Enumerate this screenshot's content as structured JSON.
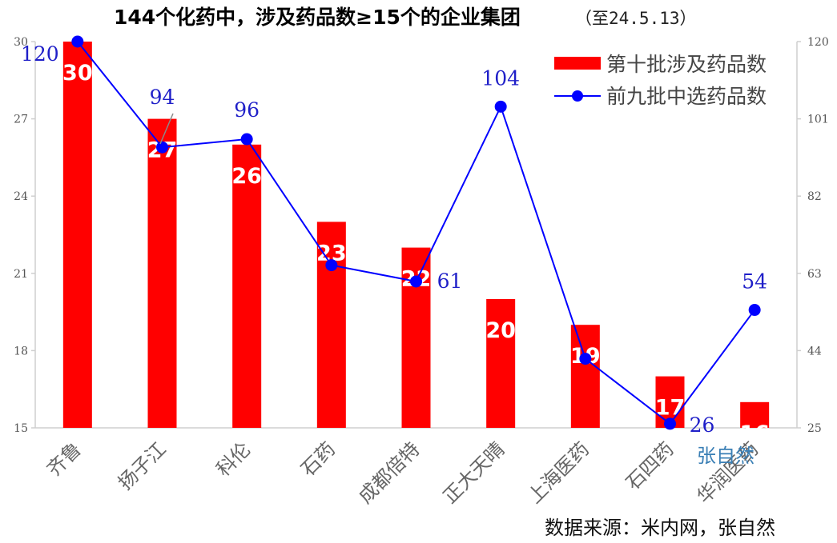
{
  "chart_data": {
    "type": "bar",
    "title": "144个化药中，涉及药品数≥15个的企业集团",
    "subtitle": "（至24.5.13）",
    "categories": [
      "齐鲁",
      "扬子江",
      "科伦",
      "石药",
      "成都倍特",
      "正大天晴",
      "上海医药",
      "石四药",
      "华润医药"
    ],
    "series": [
      {
        "name": "第十批涉及药品数",
        "type": "bar",
        "axis": "left",
        "color": "#ff0000",
        "values": [
          30,
          27,
          26,
          23,
          22,
          20,
          19,
          17,
          16
        ]
      },
      {
        "name": "前九批中选药品数",
        "type": "line",
        "axis": "right",
        "color": "#0000ff",
        "values": [
          120,
          94,
          96,
          65,
          61,
          104,
          42,
          26,
          54
        ]
      }
    ],
    "line_labels": [
      "120",
      "94",
      "96",
      "",
      "61",
      "104",
      "",
      "26",
      "54"
    ],
    "y_left": {
      "min": 15,
      "max": 30,
      "ticks": [
        "15",
        "18",
        "21",
        "24",
        "27",
        "30"
      ]
    },
    "y_right": {
      "min": 25,
      "max": 120,
      "ticks": [
        "25",
        "44",
        "63",
        "82",
        "101",
        "120"
      ]
    },
    "legend_position": "top-right",
    "source": "数据来源：米内网，张自然",
    "watermark": "张自然"
  }
}
